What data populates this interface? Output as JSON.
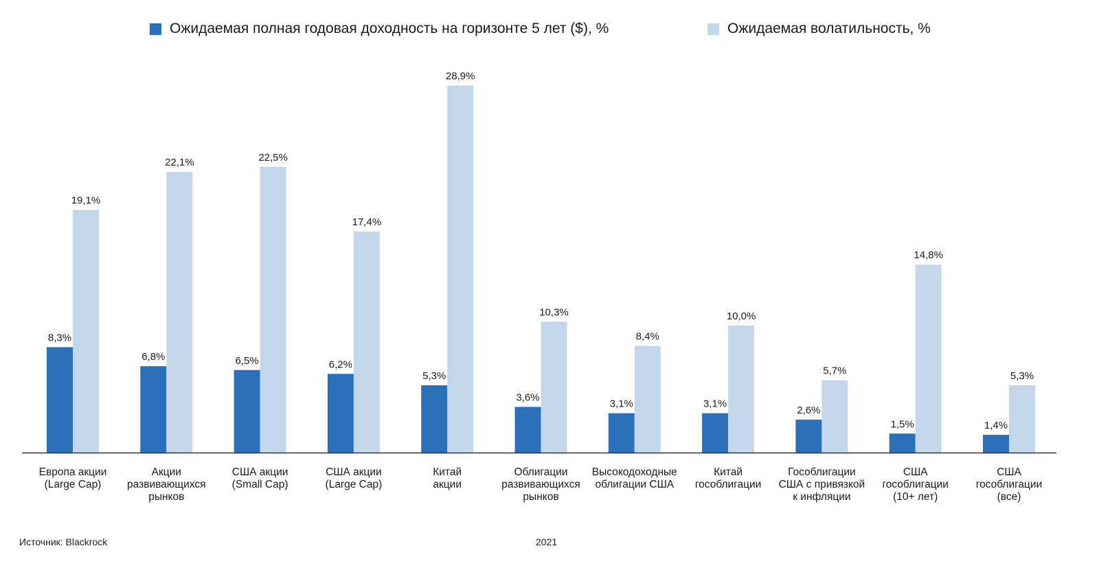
{
  "colors": {
    "return": "#2c70ba",
    "volatility": "#c4d6ea",
    "axis": "#333333"
  },
  "chart_data": {
    "type": "bar",
    "title": "",
    "xlabel": "",
    "ylabel": "",
    "ylim": [
      0,
      30
    ],
    "grid": false,
    "legend_position": "top",
    "categories": [
      [
        "Европа акции",
        "(Large Cap)"
      ],
      [
        "Акции",
        "развивающихся",
        "рынков"
      ],
      [
        "США акции",
        "(Small Cap)"
      ],
      [
        "США акции",
        "(Large Cap)"
      ],
      [
        "Китай",
        "акции"
      ],
      [
        "Облигации",
        "развивающихся",
        "рынков"
      ],
      [
        "Высокодоходные",
        "облигации США"
      ],
      [
        "Китай",
        "гособлигации"
      ],
      [
        "Гособлигации",
        "США с привязкой",
        "к инфляции"
      ],
      [
        "США",
        "гособлигации",
        "(10+ лет)"
      ],
      [
        "США",
        "гособлигации",
        "(все)"
      ]
    ],
    "series": [
      {
        "name": "Ожидаемая полная годовая доходность на горизонте 5 лет ($), %",
        "values": [
          8.3,
          6.8,
          6.5,
          6.2,
          5.3,
          3.6,
          3.1,
          3.1,
          2.6,
          1.5,
          1.4
        ],
        "labels": [
          "8,3%",
          "6,8%",
          "6,5%",
          "6,2%",
          "5,3%",
          "3,6%",
          "3,1%",
          "3,1%",
          "2,6%",
          "1,5%",
          "1,4%"
        ]
      },
      {
        "name": "Ожидаемая волатильность, %",
        "values": [
          19.1,
          22.1,
          22.5,
          17.4,
          28.9,
          10.3,
          8.4,
          10.0,
          5.7,
          14.8,
          5.3
        ],
        "labels": [
          "19,1%",
          "22,1%",
          "22,5%",
          "17,4%",
          "28,9%",
          "10,3%",
          "8,4%",
          "10,0%",
          "5,7%",
          "14,8%",
          "5,3%"
        ]
      }
    ]
  },
  "footer": {
    "source": "Источник: Blackrock",
    "year": "2021"
  }
}
